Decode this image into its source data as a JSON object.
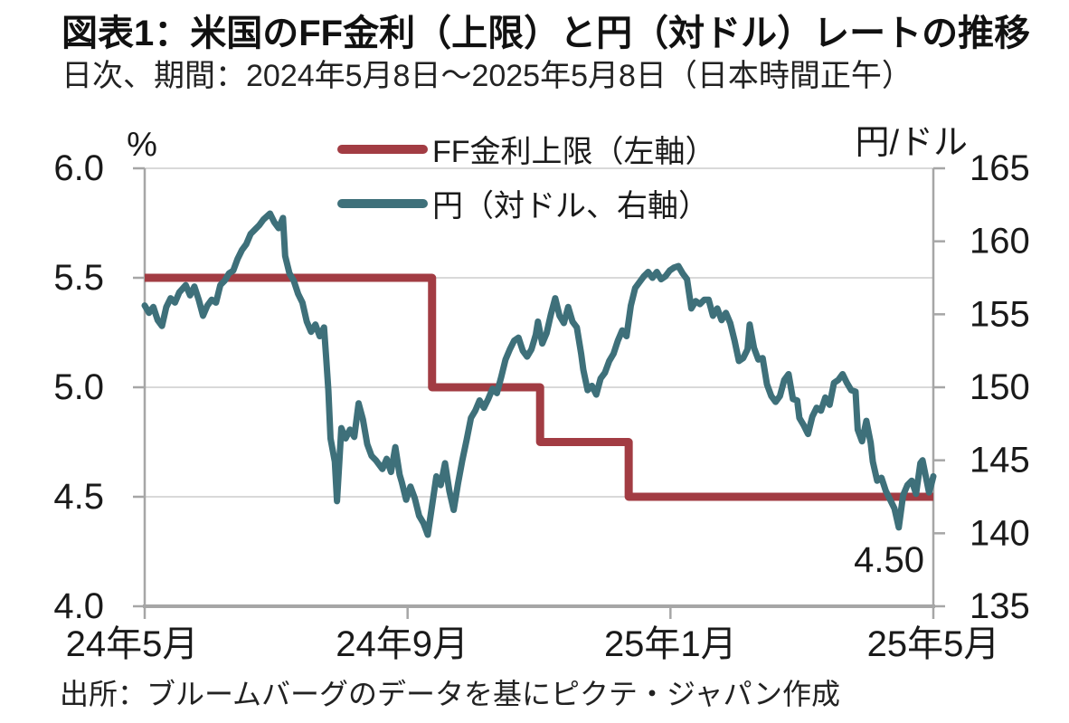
{
  "header": {
    "title": "図表1：米国のFF金利（上限）と円（対ドル）レートの推移",
    "subtitle": "日次、期間：2024年5月8日～2025年5月8日（日本時間正午）"
  },
  "legend": {
    "ff": {
      "label": "FF金利上限（左軸）",
      "color": "#A23C43"
    },
    "yen": {
      "label": "円（対ドル、右軸）",
      "color": "#3E707A"
    }
  },
  "source": "出所：ブルームバーグのデータを基にピクテ・ジャパン作成",
  "annotation": {
    "text": "4.50"
  },
  "chart_data": {
    "type": "line",
    "title": "図表1：米国のFF金利（上限）と円（対ドル）レートの推移",
    "subtitle": "日次、期間：2024年5月8日～2025年5月8日（日本時間正午）",
    "grid": "horizontal-only",
    "legend_position": "top-inside",
    "colors": {
      "ff": "#A23C43",
      "yen": "#3E707A",
      "gridline": "#D9D9D9",
      "axis": "#A6A6A6"
    },
    "x_axis": {
      "kind": "date",
      "start": "2024-05-08",
      "end": "2025-05-08",
      "span_days": 365,
      "tick_days": [
        0,
        121.67,
        243.33,
        365
      ],
      "tick_labels": [
        "24年5月",
        "24年9月",
        "25年1月",
        "25年5月"
      ]
    },
    "left_axis": {
      "label": "%",
      "min": 4.0,
      "max": 6.0,
      "ticks": [
        6.0,
        5.5,
        5.0,
        4.5,
        4.0
      ],
      "tick_labels": [
        "6.0",
        "5.5",
        "5.0",
        "4.5",
        "4.0"
      ],
      "gridline_values": [
        6.0,
        5.5,
        5.0,
        4.5
      ]
    },
    "right_axis": {
      "label": "円/ドル",
      "min": 135,
      "max": 165,
      "ticks": [
        165,
        160,
        155,
        150,
        145,
        140,
        135
      ],
      "tick_labels": [
        "165",
        "160",
        "155",
        "150",
        "145",
        "140",
        "135"
      ]
    },
    "series": [
      {
        "name": "FF金利上限（左軸）",
        "axis": "left",
        "type": "step",
        "color": "#A23C43",
        "stroke_width": 9,
        "annotation_last_value": "4.50",
        "segments": [
          {
            "from_day": 0,
            "to_day": 133,
            "value": 5.5
          },
          {
            "from_day": 133,
            "to_day": 183,
            "value": 5.0
          },
          {
            "from_day": 183,
            "to_day": 224,
            "value": 4.75
          },
          {
            "from_day": 224,
            "to_day": 365,
            "value": 4.5
          }
        ]
      },
      {
        "name": "円（対ドル、右軸）",
        "axis": "right",
        "type": "line",
        "color": "#3E707A",
        "stroke_width": 7,
        "points": [
          [
            0,
            155.6
          ],
          [
            2,
            155.1
          ],
          [
            4,
            155.5
          ],
          [
            6,
            154.6
          ],
          [
            8,
            154.2
          ],
          [
            10,
            155.5
          ],
          [
            12,
            156.1
          ],
          [
            14,
            155.8
          ],
          [
            16,
            156.5
          ],
          [
            19,
            157.0
          ],
          [
            21,
            156.3
          ],
          [
            23,
            156.9
          ],
          [
            25,
            156.0
          ],
          [
            27,
            154.9
          ],
          [
            29,
            155.6
          ],
          [
            31,
            156.0
          ],
          [
            33,
            155.8
          ],
          [
            35,
            157.0
          ],
          [
            37,
            157.3
          ],
          [
            39,
            157.8
          ],
          [
            41,
            158.0
          ],
          [
            43,
            158.8
          ],
          [
            45,
            159.4
          ],
          [
            47,
            159.8
          ],
          [
            49,
            160.5
          ],
          [
            51,
            160.8
          ],
          [
            53,
            161.1
          ],
          [
            55,
            161.5
          ],
          [
            58,
            161.9
          ],
          [
            60,
            161.3
          ],
          [
            62,
            160.9
          ],
          [
            64,
            161.6
          ],
          [
            65,
            159.0
          ],
          [
            67,
            157.8
          ],
          [
            69,
            157.3
          ],
          [
            71,
            156.4
          ],
          [
            73,
            155.8
          ],
          [
            75,
            154.5
          ],
          [
            77,
            153.8
          ],
          [
            79,
            154.3
          ],
          [
            81,
            153.5
          ],
          [
            83,
            154.1
          ],
          [
            84,
            152.0
          ],
          [
            85,
            149.8
          ],
          [
            86,
            146.5
          ],
          [
            88,
            144.9
          ],
          [
            89,
            142.2
          ],
          [
            91,
            147.2
          ],
          [
            93,
            146.5
          ],
          [
            95,
            147.1
          ],
          [
            97,
            146.6
          ],
          [
            99,
            148.9
          ],
          [
            101,
            147.8
          ],
          [
            103,
            146.1
          ],
          [
            105,
            145.3
          ],
          [
            107,
            145.0
          ],
          [
            110,
            144.4
          ],
          [
            112,
            145.1
          ],
          [
            114,
            144.2
          ],
          [
            116,
            145.9
          ],
          [
            118,
            144.0
          ],
          [
            119,
            143.5
          ],
          [
            121,
            142.3
          ],
          [
            123,
            143.2
          ],
          [
            125,
            142.4
          ],
          [
            127,
            141.2
          ],
          [
            129,
            140.7
          ],
          [
            131,
            139.9
          ],
          [
            133,
            141.9
          ],
          [
            135,
            143.9
          ],
          [
            137,
            143.3
          ],
          [
            139,
            144.8
          ],
          [
            141,
            142.9
          ],
          [
            143,
            141.6
          ],
          [
            145,
            143.4
          ],
          [
            147,
            145.0
          ],
          [
            149,
            146.4
          ],
          [
            151,
            147.9
          ],
          [
            153,
            148.4
          ],
          [
            155,
            149.1
          ],
          [
            157,
            148.6
          ],
          [
            159,
            149.2
          ],
          [
            161,
            149.9
          ],
          [
            163,
            149.6
          ],
          [
            165,
            150.7
          ],
          [
            167,
            151.9
          ],
          [
            169,
            152.6
          ],
          [
            171,
            153.2
          ],
          [
            173,
            153.4
          ],
          [
            175,
            152.5
          ],
          [
            177,
            152.1
          ],
          [
            179,
            152.6
          ],
          [
            181,
            153.6
          ],
          [
            182,
            154.5
          ],
          [
            184,
            153.0
          ],
          [
            186,
            153.7
          ],
          [
            188,
            155.0
          ],
          [
            190,
            156.1
          ],
          [
            192,
            154.9
          ],
          [
            194,
            154.4
          ],
          [
            196,
            155.5
          ],
          [
            198,
            154.5
          ],
          [
            200,
            154.1
          ],
          [
            202,
            152.3
          ],
          [
            203,
            151.2
          ],
          [
            205,
            149.8
          ],
          [
            207,
            150.1
          ],
          [
            209,
            149.5
          ],
          [
            211,
            150.6
          ],
          [
            213,
            151.0
          ],
          [
            215,
            151.8
          ],
          [
            217,
            152.3
          ],
          [
            219,
            153.2
          ],
          [
            221,
            153.9
          ],
          [
            223,
            153.5
          ],
          [
            225,
            155.6
          ],
          [
            227,
            156.8
          ],
          [
            229,
            157.2
          ],
          [
            231,
            157.6
          ],
          [
            233,
            157.9
          ],
          [
            235,
            157.5
          ],
          [
            237,
            157.9
          ],
          [
            239,
            157.4
          ],
          [
            241,
            157.6
          ],
          [
            243,
            158.0
          ],
          [
            245,
            158.2
          ],
          [
            247,
            158.3
          ],
          [
            249,
            157.8
          ],
          [
            251,
            157.4
          ],
          [
            253,
            155.4
          ],
          [
            255,
            155.9
          ],
          [
            257,
            155.7
          ],
          [
            259,
            156.0
          ],
          [
            261,
            156.0
          ],
          [
            263,
            154.9
          ],
          [
            265,
            155.4
          ],
          [
            267,
            154.6
          ],
          [
            269,
            155.1
          ],
          [
            271,
            154.4
          ],
          [
            273,
            153.2
          ],
          [
            275,
            151.8
          ],
          [
            277,
            152.0
          ],
          [
            279,
            152.6
          ],
          [
            280,
            154.3
          ],
          [
            282,
            152.7
          ],
          [
            284,
            151.9
          ],
          [
            286,
            152.0
          ],
          [
            288,
            150.2
          ],
          [
            290,
            149.4
          ],
          [
            292,
            149.0
          ],
          [
            294,
            149.4
          ],
          [
            296,
            150.5
          ],
          [
            298,
            150.9
          ],
          [
            300,
            149.2
          ],
          [
            302,
            149.1
          ],
          [
            303,
            147.9
          ],
          [
            305,
            147.4
          ],
          [
            307,
            146.8
          ],
          [
            309,
            148.0
          ],
          [
            311,
            148.6
          ],
          [
            313,
            148.4
          ],
          [
            315,
            149.3
          ],
          [
            317,
            148.8
          ],
          [
            319,
            150.3
          ],
          [
            321,
            150.5
          ],
          [
            323,
            150.9
          ],
          [
            325,
            150.3
          ],
          [
            327,
            149.8
          ],
          [
            329,
            149.7
          ],
          [
            330,
            147.1
          ],
          [
            332,
            146.3
          ],
          [
            334,
            147.7
          ],
          [
            336,
            146.2
          ],
          [
            337,
            144.9
          ],
          [
            339,
            143.6
          ],
          [
            341,
            143.8
          ],
          [
            343,
            142.9
          ],
          [
            345,
            142.3
          ],
          [
            347,
            141.7
          ],
          [
            349,
            140.4
          ],
          [
            351,
            142.6
          ],
          [
            353,
            143.3
          ],
          [
            355,
            143.6
          ],
          [
            357,
            142.7
          ],
          [
            359,
            144.8
          ],
          [
            360,
            145.0
          ],
          [
            363,
            142.8
          ],
          [
            364,
            143.3
          ],
          [
            365,
            143.9
          ]
        ]
      }
    ]
  }
}
